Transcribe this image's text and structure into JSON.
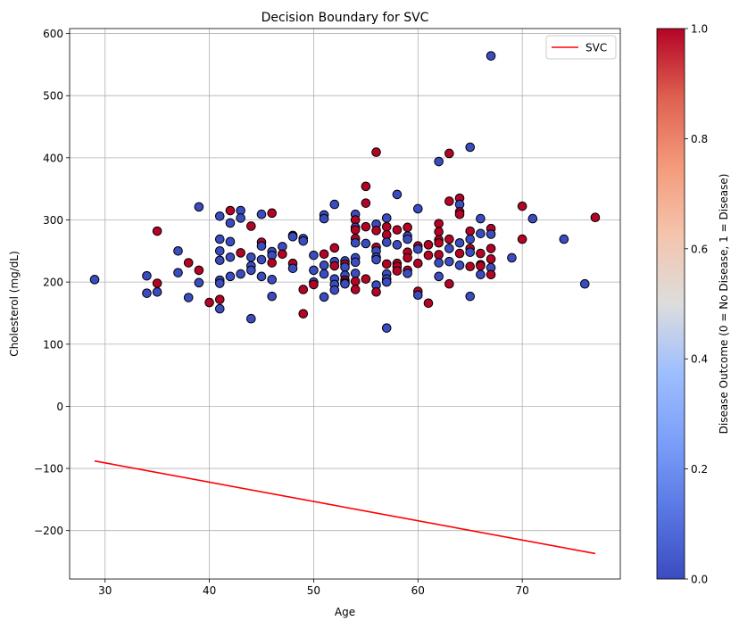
{
  "chart_data": {
    "type": "scatter",
    "title": "Decision Boundary for SVC",
    "xlabel": "Age",
    "ylabel": "Cholesterol (mg/dL)",
    "xlim": [
      26.6,
      79.4
    ],
    "ylim": [
      -278,
      608
    ],
    "grid": true,
    "x_ticks": [
      30,
      40,
      50,
      60,
      70
    ],
    "y_ticks": [
      -200,
      -100,
      0,
      100,
      200,
      300,
      400,
      500,
      600
    ],
    "x_tick_labels": [
      "30",
      "40",
      "50",
      "60",
      "70"
    ],
    "y_tick_labels": [
      "−200",
      "−100",
      "0",
      "100",
      "200",
      "300",
      "400",
      "500",
      "600"
    ],
    "legend": {
      "position": "top-right",
      "entries": [
        {
          "label": "SVC",
          "color": "#ff0000"
        }
      ]
    },
    "colorbar": {
      "label": "Disease Outcome (0 = No Disease, 1 = Disease)",
      "range": [
        0,
        1
      ],
      "ticks": [
        0,
        0.2,
        0.4,
        0.6,
        0.8,
        1
      ],
      "tick_labels": [
        "0.0",
        "0.2",
        "0.4",
        "0.6",
        "0.8",
        "1.0"
      ],
      "colormap": "coolwarm",
      "low_color": "#3b4cc0",
      "mid_color": "#dddddd",
      "high_color": "#b40426"
    },
    "point_colors": {
      "0": "#3b4cc0",
      "1": "#b40426"
    },
    "boundary_line": {
      "name": "SVC",
      "color": "#ff0000",
      "x": [
        29,
        77
      ],
      "y": [
        -88,
        -237
      ]
    },
    "points": [
      [
        29,
        204,
        0
      ],
      [
        34,
        210,
        0
      ],
      [
        34,
        182,
        0
      ],
      [
        35,
        282,
        1
      ],
      [
        35,
        198,
        1
      ],
      [
        35,
        184,
        0
      ],
      [
        37,
        250,
        0
      ],
      [
        37,
        215,
        0
      ],
      [
        38,
        231,
        1
      ],
      [
        38,
        175,
        0
      ],
      [
        39,
        321,
        0
      ],
      [
        39,
        219,
        1
      ],
      [
        39,
        199,
        0
      ],
      [
        40,
        167,
        1
      ],
      [
        41,
        306,
        0
      ],
      [
        41,
        269,
        0
      ],
      [
        41,
        250,
        0
      ],
      [
        41,
        235,
        0
      ],
      [
        41,
        203,
        0
      ],
      [
        41,
        198,
        0
      ],
      [
        41,
        172,
        1
      ],
      [
        41,
        157,
        0
      ],
      [
        42,
        315,
        1
      ],
      [
        42,
        295,
        0
      ],
      [
        42,
        265,
        0
      ],
      [
        42,
        240,
        0
      ],
      [
        42,
        209,
        0
      ],
      [
        43,
        315,
        0
      ],
      [
        43,
        303,
        0
      ],
      [
        43,
        247,
        1
      ],
      [
        43,
        213,
        0
      ],
      [
        44,
        290,
        1
      ],
      [
        44,
        240,
        0
      ],
      [
        44,
        226,
        0
      ],
      [
        44,
        219,
        0
      ],
      [
        44,
        141,
        0
      ],
      [
        45,
        309,
        0
      ],
      [
        45,
        264,
        1
      ],
      [
        45,
        258,
        0
      ],
      [
        45,
        236,
        0
      ],
      [
        45,
        209,
        0
      ],
      [
        46,
        311,
        1
      ],
      [
        46,
        249,
        0
      ],
      [
        46,
        243,
        0
      ],
      [
        46,
        231,
        1
      ],
      [
        46,
        204,
        0
      ],
      [
        46,
        177,
        0
      ],
      [
        47,
        257,
        0
      ],
      [
        47,
        245,
        1
      ],
      [
        48,
        275,
        1
      ],
      [
        48,
        273,
        0
      ],
      [
        48,
        230,
        1
      ],
      [
        48,
        222,
        0
      ],
      [
        49,
        270,
        0
      ],
      [
        49,
        266,
        0
      ],
      [
        49,
        188,
        1
      ],
      [
        49,
        149,
        1
      ],
      [
        50,
        243,
        0
      ],
      [
        50,
        219,
        0
      ],
      [
        50,
        200,
        0
      ],
      [
        50,
        196,
        1
      ],
      [
        51,
        308,
        0
      ],
      [
        51,
        302,
        0
      ],
      [
        51,
        245,
        1
      ],
      [
        51,
        227,
        0
      ],
      [
        51,
        213,
        0
      ],
      [
        51,
        176,
        0
      ],
      [
        52,
        325,
        0
      ],
      [
        52,
        255,
        1
      ],
      [
        52,
        233,
        0
      ],
      [
        52,
        226,
        1
      ],
      [
        52,
        205,
        0
      ],
      [
        52,
        196,
        0
      ],
      [
        52,
        187,
        0
      ],
      [
        53,
        234,
        0
      ],
      [
        53,
        229,
        1
      ],
      [
        53,
        224,
        0
      ],
      [
        53,
        211,
        0
      ],
      [
        53,
        203,
        1
      ],
      [
        53,
        199,
        0
      ],
      [
        53,
        197,
        0
      ],
      [
        54,
        309,
        0
      ],
      [
        54,
        300,
        1
      ],
      [
        54,
        288,
        0
      ],
      [
        54,
        284,
        1
      ],
      [
        54,
        270,
        1
      ],
      [
        54,
        263,
        0
      ],
      [
        54,
        239,
        0
      ],
      [
        54,
        232,
        0
      ],
      [
        54,
        214,
        0
      ],
      [
        54,
        201,
        1
      ],
      [
        54,
        188,
        1
      ],
      [
        55,
        354,
        1
      ],
      [
        55,
        327,
        1
      ],
      [
        55,
        289,
        1
      ],
      [
        55,
        262,
        0
      ],
      [
        55,
        205,
        1
      ],
      [
        56,
        409,
        1
      ],
      [
        56,
        293,
        0
      ],
      [
        56,
        283,
        1
      ],
      [
        56,
        256,
        1
      ],
      [
        56,
        250,
        0
      ],
      [
        56,
        240,
        0
      ],
      [
        56,
        236,
        0
      ],
      [
        56,
        195,
        0
      ],
      [
        56,
        184,
        1
      ],
      [
        57,
        303,
        0
      ],
      [
        57,
        289,
        1
      ],
      [
        57,
        276,
        1
      ],
      [
        57,
        264,
        0
      ],
      [
        57,
        229,
        1
      ],
      [
        57,
        213,
        0
      ],
      [
        57,
        205,
        0
      ],
      [
        57,
        200,
        0
      ],
      [
        57,
        126,
        0
      ],
      [
        58,
        341,
        0
      ],
      [
        58,
        284,
        1
      ],
      [
        58,
        260,
        0
      ],
      [
        58,
        230,
        1
      ],
      [
        58,
        225,
        1
      ],
      [
        58,
        218,
        1
      ],
      [
        59,
        288,
        1
      ],
      [
        59,
        274,
        0
      ],
      [
        59,
        269,
        0
      ],
      [
        59,
        248,
        1
      ],
      [
        59,
        239,
        1
      ],
      [
        59,
        219,
        1
      ],
      [
        59,
        214,
        0
      ],
      [
        60,
        318,
        0
      ],
      [
        60,
        258,
        1
      ],
      [
        60,
        253,
        0
      ],
      [
        60,
        230,
        1
      ],
      [
        60,
        185,
        1
      ],
      [
        60,
        179,
        0
      ],
      [
        61,
        260,
        1
      ],
      [
        61,
        243,
        1
      ],
      [
        61,
        166,
        1
      ],
      [
        62,
        394,
        0
      ],
      [
        62,
        294,
        1
      ],
      [
        62,
        281,
        1
      ],
      [
        62,
        268,
        1
      ],
      [
        62,
        263,
        1
      ],
      [
        62,
        244,
        1
      ],
      [
        62,
        231,
        0
      ],
      [
        62,
        209,
        0
      ],
      [
        63,
        407,
        1
      ],
      [
        63,
        330,
        1
      ],
      [
        63,
        269,
        1
      ],
      [
        63,
        254,
        0
      ],
      [
        63,
        233,
        0
      ],
      [
        63,
        197,
        1
      ],
      [
        64,
        335,
        1
      ],
      [
        64,
        325,
        0
      ],
      [
        64,
        313,
        1
      ],
      [
        64,
        309,
        1
      ],
      [
        64,
        263,
        0
      ],
      [
        64,
        246,
        1
      ],
      [
        64,
        227,
        0
      ],
      [
        65,
        417,
        0
      ],
      [
        65,
        282,
        1
      ],
      [
        65,
        269,
        0
      ],
      [
        65,
        254,
        1
      ],
      [
        65,
        248,
        0
      ],
      [
        65,
        225,
        1
      ],
      [
        65,
        177,
        0
      ],
      [
        66,
        302,
        0
      ],
      [
        66,
        278,
        0
      ],
      [
        66,
        246,
        1
      ],
      [
        66,
        228,
        1
      ],
      [
        66,
        226,
        1
      ],
      [
        66,
        212,
        0
      ],
      [
        67,
        564,
        0
      ],
      [
        67,
        286,
        1
      ],
      [
        67,
        277,
        0
      ],
      [
        67,
        254,
        1
      ],
      [
        67,
        237,
        1
      ],
      [
        67,
        223,
        0
      ],
      [
        67,
        212,
        1
      ],
      [
        69,
        239,
        0
      ],
      [
        70,
        322,
        1
      ],
      [
        70,
        269,
        1
      ],
      [
        71,
        302,
        0
      ],
      [
        74,
        269,
        0
      ],
      [
        76,
        197,
        0
      ],
      [
        77,
        304,
        1
      ]
    ]
  }
}
